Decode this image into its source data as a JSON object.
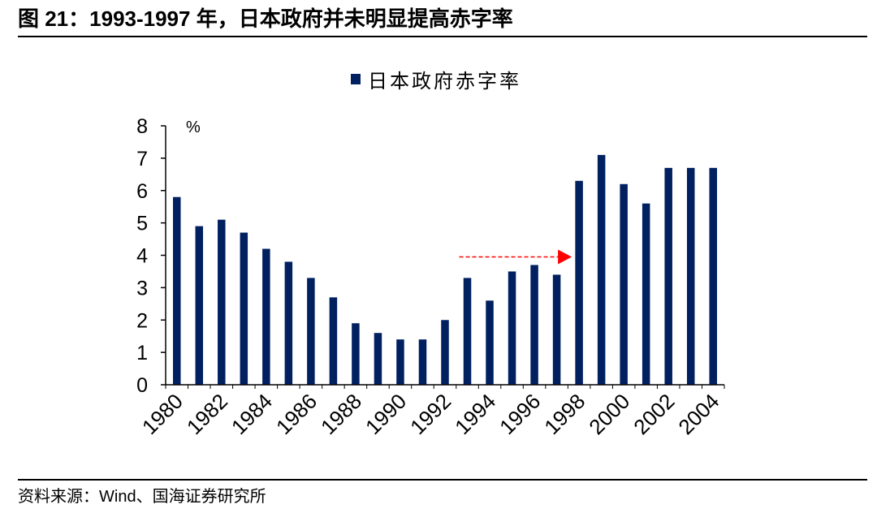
{
  "chart_data": {
    "type": "bar",
    "title": "图 21：1993-1997 年，日本政府并未明显提高赤字率",
    "ylabel": "%",
    "x": [
      1980,
      1981,
      1982,
      1983,
      1984,
      1985,
      1986,
      1987,
      1988,
      1989,
      1990,
      1991,
      1992,
      1993,
      1994,
      1995,
      1996,
      1997,
      1998,
      1999,
      2000,
      2001,
      2002,
      2003,
      2004
    ],
    "xticks": [
      "1980",
      "1982",
      "1984",
      "1986",
      "1988",
      "1990",
      "1992",
      "1994",
      "1996",
      "1998",
      "2000",
      "2002",
      "2004"
    ],
    "yticks": [
      "0",
      "1",
      "2",
      "3",
      "4",
      "5",
      "6",
      "7",
      "8"
    ],
    "ylim": [
      0,
      8
    ],
    "grid": false,
    "legend": "top",
    "series": [
      {
        "name": "日本政府赤字率",
        "color": "#002060",
        "values": [
          5.8,
          4.9,
          5.1,
          4.7,
          4.2,
          3.8,
          3.3,
          2.7,
          1.9,
          1.6,
          1.4,
          1.4,
          2.0,
          3.3,
          2.6,
          3.5,
          3.7,
          3.4,
          6.3,
          7.1,
          6.2,
          5.6,
          6.7,
          6.7,
          6.7
        ]
      }
    ],
    "annotations": [
      {
        "x_from": 1993,
        "x_to": 1998,
        "y": 3.95,
        "color": "#FF0000"
      }
    ]
  },
  "source": "资料来源：Wind、国海证券研究所"
}
